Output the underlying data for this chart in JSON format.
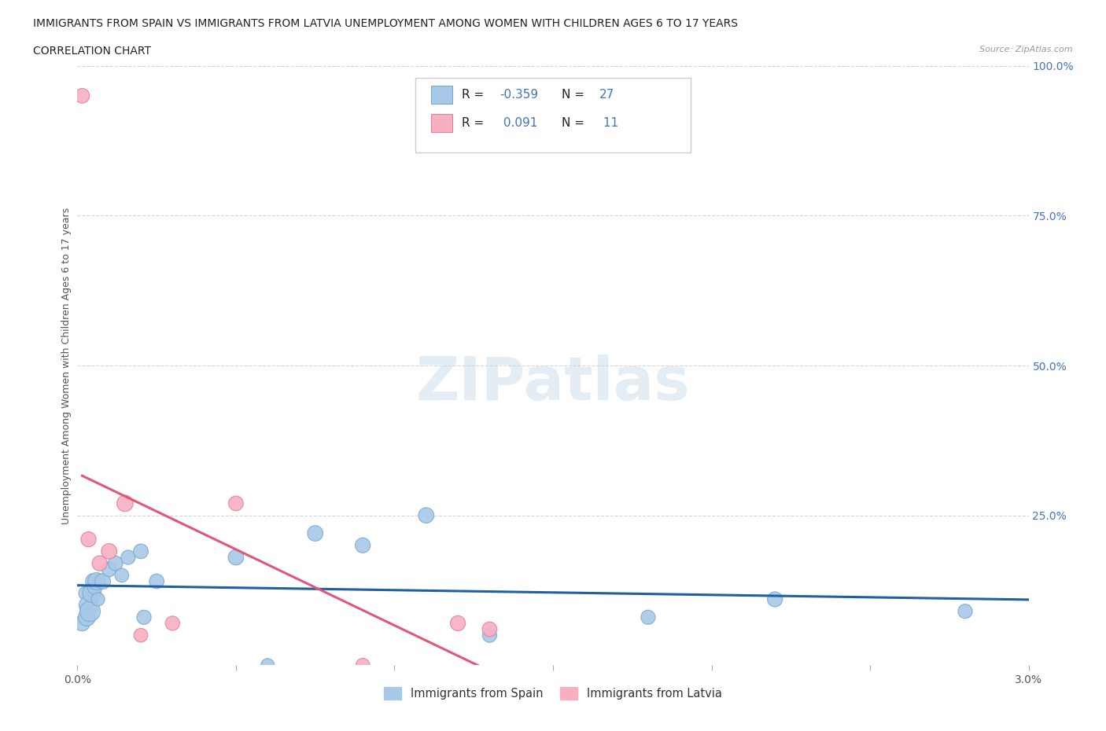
{
  "title_line1": "IMMIGRANTS FROM SPAIN VS IMMIGRANTS FROM LATVIA UNEMPLOYMENT AMONG WOMEN WITH CHILDREN AGES 6 TO 17 YEARS",
  "title_line2": "CORRELATION CHART",
  "source": "Source: ZipAtlas.com",
  "ylabel": "Unemployment Among Women with Children Ages 6 to 17 years",
  "xlim": [
    0.0,
    0.03
  ],
  "ylim": [
    0.0,
    1.0
  ],
  "xticks": [
    0.0,
    0.005,
    0.01,
    0.015,
    0.02,
    0.025,
    0.03
  ],
  "xticklabels": [
    "0.0%",
    "",
    "",
    "",
    "",
    "",
    "3.0%"
  ],
  "yticks_right": [
    0.0,
    0.25,
    0.5,
    0.75,
    1.0
  ],
  "yticklabels_right": [
    "",
    "25.0%",
    "50.0%",
    "75.0%",
    "100.0%"
  ],
  "spain_R": -0.359,
  "spain_N": 27,
  "latvia_R": 0.091,
  "latvia_N": 11,
  "spain_color": "#a8c8e8",
  "spain_edge_color": "#7aaad0",
  "spain_line_color": "#2060a0",
  "latvia_color": "#f8b0c0",
  "latvia_edge_color": "#e080a0",
  "latvia_line_color": "#e05878",
  "watermark_color": "#c8dce8",
  "background_color": "#ffffff",
  "grid_color": "#cccccc",
  "right_axis_color": "#4472c4",
  "spain_x": [
    0.00015,
    0.00025,
    0.0003,
    0.00035,
    0.0004,
    0.00045,
    0.0005,
    0.00055,
    0.0006,
    0.00065,
    0.0008,
    0.001,
    0.0012,
    0.0014,
    0.0016,
    0.002,
    0.0021,
    0.0025,
    0.005,
    0.006,
    0.0075,
    0.009,
    0.011,
    0.013,
    0.018,
    0.022,
    0.028
  ],
  "spain_y": [
    0.07,
    0.12,
    0.08,
    0.1,
    0.09,
    0.12,
    0.14,
    0.13,
    0.14,
    0.11,
    0.14,
    0.16,
    0.17,
    0.15,
    0.18,
    0.19,
    0.08,
    0.14,
    0.18,
    0.0,
    0.22,
    0.2,
    0.25,
    0.05,
    0.08,
    0.11,
    0.09
  ],
  "spain_sizes": [
    200,
    150,
    250,
    300,
    350,
    280,
    200,
    180,
    250,
    150,
    200,
    180,
    180,
    160,
    170,
    180,
    170,
    180,
    200,
    150,
    200,
    190,
    200,
    170,
    170,
    190,
    170
  ],
  "latvia_x": [
    0.00015,
    0.00035,
    0.0007,
    0.001,
    0.0015,
    0.002,
    0.003,
    0.005,
    0.009,
    0.012,
    0.013
  ],
  "latvia_y": [
    0.95,
    0.21,
    0.17,
    0.19,
    0.27,
    0.05,
    0.07,
    0.27,
    0.0,
    0.07,
    0.06
  ],
  "latvia_sizes": [
    180,
    190,
    190,
    200,
    220,
    160,
    170,
    180,
    160,
    190,
    180
  ]
}
